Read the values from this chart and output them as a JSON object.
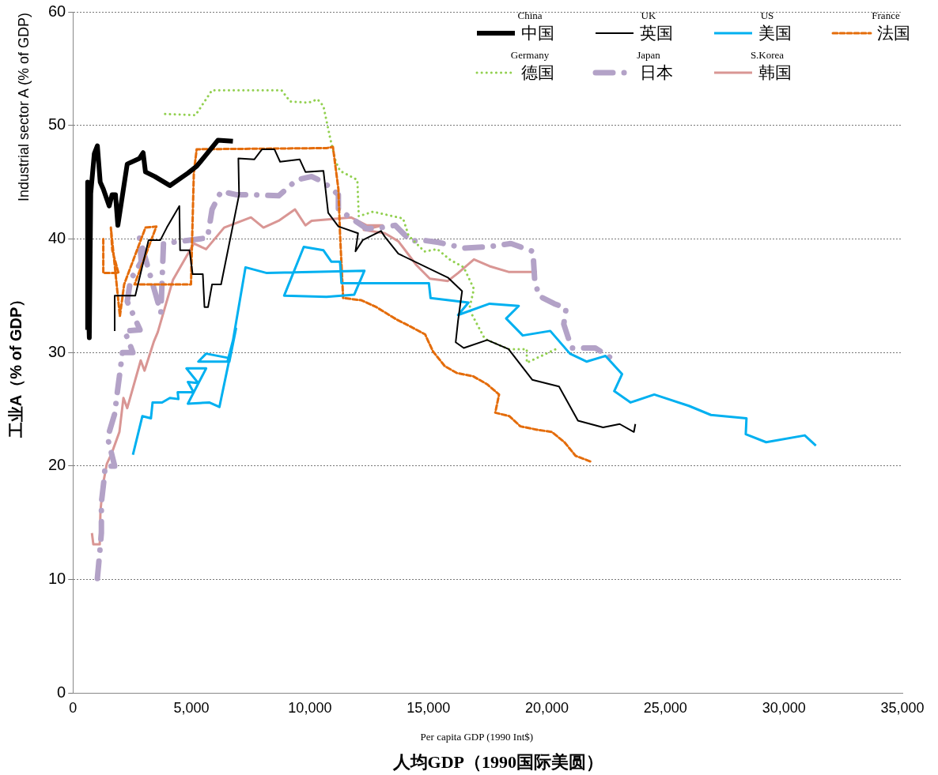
{
  "chart_data": {
    "type": "line",
    "xlabel": "人均GDP（1990国际美圆）",
    "ylabel": "工业A（% of GDP）",
    "annotations": [
      "Industrial sector A (% of GDP)",
      "Per capita GDP (1990 Int$)"
    ],
    "xlim": [
      0,
      35000
    ],
    "xticks": [
      {
        "value": 0,
        "label": "0"
      },
      {
        "value": 5000,
        "label": "5,000"
      },
      {
        "value": 10000,
        "label": "10,000"
      },
      {
        "value": 15000,
        "label": "15,000"
      },
      {
        "value": 20000,
        "label": "20,000"
      },
      {
        "value": 25000,
        "label": "25,000"
      },
      {
        "value": 30000,
        "label": "30,000"
      },
      {
        "value": 35000,
        "label": "35,000"
      }
    ],
    "ylim": [
      0,
      60
    ],
    "yticks": [
      0,
      10,
      20,
      30,
      40,
      50,
      60
    ],
    "grid": "y",
    "legend": "top right",
    "marker": "none",
    "series": [
      {
        "name": "China\n中国",
        "color": "#000000",
        "line_style": "solid",
        "x": [
          600,
          620,
          650,
          690,
          750,
          900,
          1030,
          1150,
          1280,
          1530,
          1650,
          1795,
          1895,
          2100,
          2290,
          2810,
          2960,
          3060,
          3450,
          4090,
          4850,
          5220,
          6120,
          6750
        ],
        "values": [
          32,
          45,
          34,
          31.3,
          44,
          47.5,
          48.2,
          45,
          44.4,
          42.9,
          43.9,
          43.9,
          41.2,
          44,
          46.6,
          47.1,
          47.6,
          45.9,
          45.5,
          44.7,
          45.8,
          46.4,
          48.7,
          48.6
        ]
      },
      {
        "name": "UK\n英国",
        "color": "#000000",
        "line_style": "solid",
        "x": [
          1760,
          1760,
          2630,
          3190,
          3690,
          3960,
          4490,
          4520,
          4920,
          5050,
          5480,
          5550,
          5700,
          5870,
          6250,
          7010,
          6980,
          7650,
          7980,
          8500,
          8740,
          9570,
          9810,
          10570,
          10770,
          11200,
          12030,
          11920,
          12230,
          13000,
          13160,
          13730,
          15820,
          16420,
          16250,
          16150,
          16490,
          17480,
          18380,
          19380,
          20510,
          21310,
          22370,
          23070,
          23670,
          23730
        ],
        "values": [
          31.9,
          35,
          35,
          39.9,
          39.9,
          41,
          42.9,
          39,
          39,
          36.9,
          36.9,
          34,
          34,
          36,
          36,
          43.9,
          47.1,
          47,
          47.9,
          47.9,
          46.8,
          47,
          45.9,
          46,
          42.3,
          41.1,
          40.5,
          38.9,
          39.9,
          40.7,
          40.2,
          38.7,
          36.6,
          35.4,
          32.8,
          30.9,
          30.4,
          31.1,
          30.3,
          27.6,
          27,
          24,
          23.4,
          23.7,
          23,
          23.7
        ]
      },
      {
        "name": "US\n美国",
        "color": "#00b0f0",
        "line_style": "solid",
        "x": [
          2530,
          2930,
          3290,
          3360,
          3760,
          4090,
          4450,
          4420,
          5090,
          4850,
          5290,
          4790,
          5620,
          4850,
          5750,
          6180,
          6610,
          5620,
          5290,
          6520,
          6880,
          6600,
          7280,
          8180,
          12300,
          11870,
          10700,
          8910,
          9740,
          10570,
          10900,
          11270,
          11330,
          15020,
          15090,
          16690,
          16250,
          17580,
          18810,
          18280,
          18980,
          20140,
          20970,
          21670,
          22470,
          23170,
          22840,
          23530,
          24530,
          25990,
          26920,
          28420,
          28390,
          29250,
          30880,
          31350
        ],
        "values": [
          21,
          24.4,
          24.2,
          25.6,
          25.6,
          26,
          25.9,
          26.5,
          26.5,
          27.4,
          27.3,
          28.6,
          28.6,
          25.5,
          25.6,
          25.2,
          29.5,
          29.9,
          29.2,
          29.2,
          32.1,
          29.2,
          37.5,
          37,
          37.2,
          35.1,
          34.9,
          35,
          39.3,
          39,
          38,
          38,
          36.1,
          36.1,
          34.8,
          34.4,
          33.3,
          34.3,
          34.1,
          33,
          31.5,
          31.9,
          29.9,
          29.2,
          29.7,
          28.1,
          26.6,
          25.6,
          26.3,
          25.3,
          24.5,
          24.2,
          22.8,
          22.1,
          22.7,
          21.8
        ]
      },
      {
        "name": "France\n法国",
        "color": "#e46c0a",
        "line_style": "dashed",
        "x": [
          1280,
          1280,
          1920,
          1660,
          1600,
          1980,
          2160,
          3060,
          3520,
          2600,
          4980,
          5100,
          5220,
          10700,
          10970,
          11200,
          11270,
          11400,
          12170,
          12800,
          13660,
          14230,
          14860,
          15190,
          15690,
          16190,
          16890,
          17480,
          17980,
          17820,
          18410,
          18880,
          19580,
          20210,
          20740,
          21210,
          21840
        ],
        "values": [
          40,
          37,
          37,
          39,
          41,
          33.2,
          36,
          41,
          41.1,
          36,
          36,
          45.8,
          47.9,
          48,
          48.1,
          44.4,
          40.4,
          34.8,
          34.6,
          34,
          32.9,
          32.3,
          31.6,
          30.1,
          28.8,
          28.2,
          27.9,
          27.2,
          26.3,
          24.7,
          24.4,
          23.5,
          23.2,
          23,
          22.1,
          20.9,
          20.4
        ]
      },
      {
        "name": "Germany\n德国",
        "color": "#92d050",
        "line_style": "dotted",
        "x": [
          3890,
          5170,
          5870,
          8800,
          9170,
          9940,
          10320,
          10570,
          10840,
          11090,
          11270,
          12000,
          12060,
          12660,
          13930,
          14160,
          14830,
          15380,
          15890,
          16490,
          16920,
          16720,
          17380,
          18380,
          19150,
          19150,
          20480
        ],
        "values": [
          51,
          50.9,
          53.1,
          53.1,
          52.1,
          52,
          52.3,
          51.7,
          49,
          46.8,
          46,
          45.2,
          42,
          42.4,
          41.8,
          40.3,
          38.9,
          39.1,
          38.2,
          37.5,
          35.6,
          33.8,
          31.2,
          30.3,
          30.3,
          29.1,
          30.4
        ]
      },
      {
        "name": "Japan\n日本",
        "color": "#b3a2c7",
        "line_style": "dashdot",
        "x": [
          1030,
          1130,
          1200,
          1200,
          1300,
          1360,
          1760,
          1460,
          1760,
          1860,
          1960,
          2090,
          2530,
          2180,
          2830,
          2290,
          2430,
          2880,
          2810,
          3710,
          3820,
          5680,
          5870,
          6250,
          6880,
          7510,
          8680,
          9440,
          10070,
          10570,
          11200,
          11200,
          12400,
          13000,
          13600,
          14260,
          14730,
          15420,
          16490,
          17480,
          18480,
          19410,
          19480,
          19650,
          20310,
          20810,
          20710,
          21040,
          22040,
          22870
        ],
        "values": [
          10.1,
          12.4,
          14.1,
          16.8,
          18.6,
          20,
          20,
          22.5,
          24.6,
          26.3,
          27.9,
          30,
          30,
          31.9,
          32,
          34.5,
          36.4,
          38,
          40.1,
          33.5,
          39.6,
          40.1,
          42.6,
          44.2,
          43.9,
          43.9,
          43.8,
          45.2,
          45.5,
          45,
          43.9,
          42.6,
          40.9,
          41,
          41.2,
          39.8,
          39.9,
          39.7,
          39.2,
          39.3,
          39.6,
          38.9,
          36.5,
          35,
          34.3,
          33.9,
          32.5,
          30.4,
          30.4,
          29.3
        ]
      },
      {
        "name": "S.Korea\n韩国",
        "color": "#d99694",
        "line_style": "solid",
        "x": [
          800,
          860,
          1130,
          1160,
          1260,
          1430,
          1630,
          1960,
          2130,
          2290,
          2860,
          3020,
          3420,
          3580,
          4220,
          5100,
          5620,
          6380,
          7510,
          8040,
          8680,
          9370,
          9810,
          10070,
          11730,
          12400,
          13060,
          12270,
          13160,
          13730,
          14490,
          15060,
          15820,
          16250,
          16920,
          17580,
          18380,
          19580
        ],
        "values": [
          14.1,
          13.1,
          13.1,
          16,
          18.3,
          20.2,
          21.1,
          23,
          26,
          25.1,
          29.3,
          28.4,
          31,
          31.8,
          36.4,
          39.6,
          39.1,
          41,
          41.9,
          41,
          41.6,
          42.6,
          41.2,
          41.6,
          41.9,
          41.2,
          41.2,
          40.8,
          40.5,
          39.8,
          37.7,
          36.5,
          36.3,
          37,
          38.2,
          37.6,
          37.1,
          37.1
        ]
      }
    ]
  }
}
